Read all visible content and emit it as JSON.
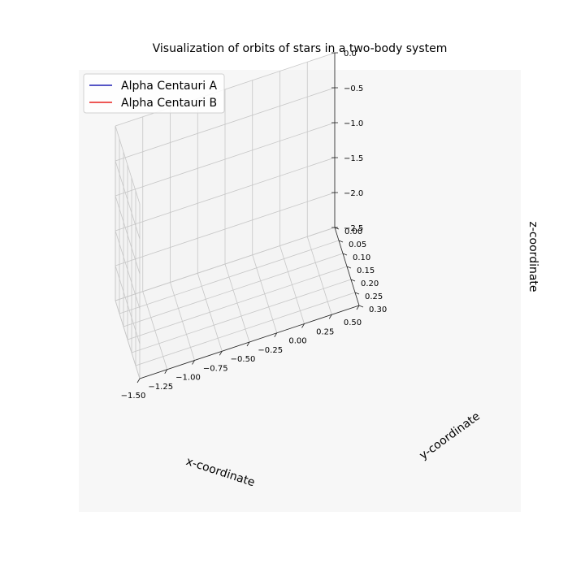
{
  "chart_data": {
    "type": "line",
    "projection": "3d",
    "title": "Visualization of orbits of stars in a two-body system",
    "xlabel": "x-coordinate",
    "ylabel": "y-coordinate",
    "zlabel": "z-coordinate",
    "xlim": [
      -1.5,
      0.5
    ],
    "ylim": [
      0.0,
      0.3
    ],
    "zlim": [
      -2.5,
      0.0
    ],
    "x_ticks": [
      "−1.50",
      "−1.25",
      "−1.00",
      "−0.75",
      "−0.50",
      "−0.25",
      "0.00",
      "0.25",
      "0.50"
    ],
    "y_ticks": [
      "0.00",
      "0.05",
      "0.10",
      "0.15",
      "0.20",
      "0.25",
      "0.30"
    ],
    "z_ticks": [
      "0.0",
      "−0.5",
      "−1.0",
      "−1.5",
      "−2.0",
      "−2.5"
    ],
    "grid": true,
    "legend_position": "top-left",
    "series": [
      {
        "name": "Alpha Centauri A",
        "color": "#1f1fb4",
        "points": []
      },
      {
        "name": "Alpha Centauri B",
        "color": "#e8201e",
        "points": []
      }
    ]
  }
}
